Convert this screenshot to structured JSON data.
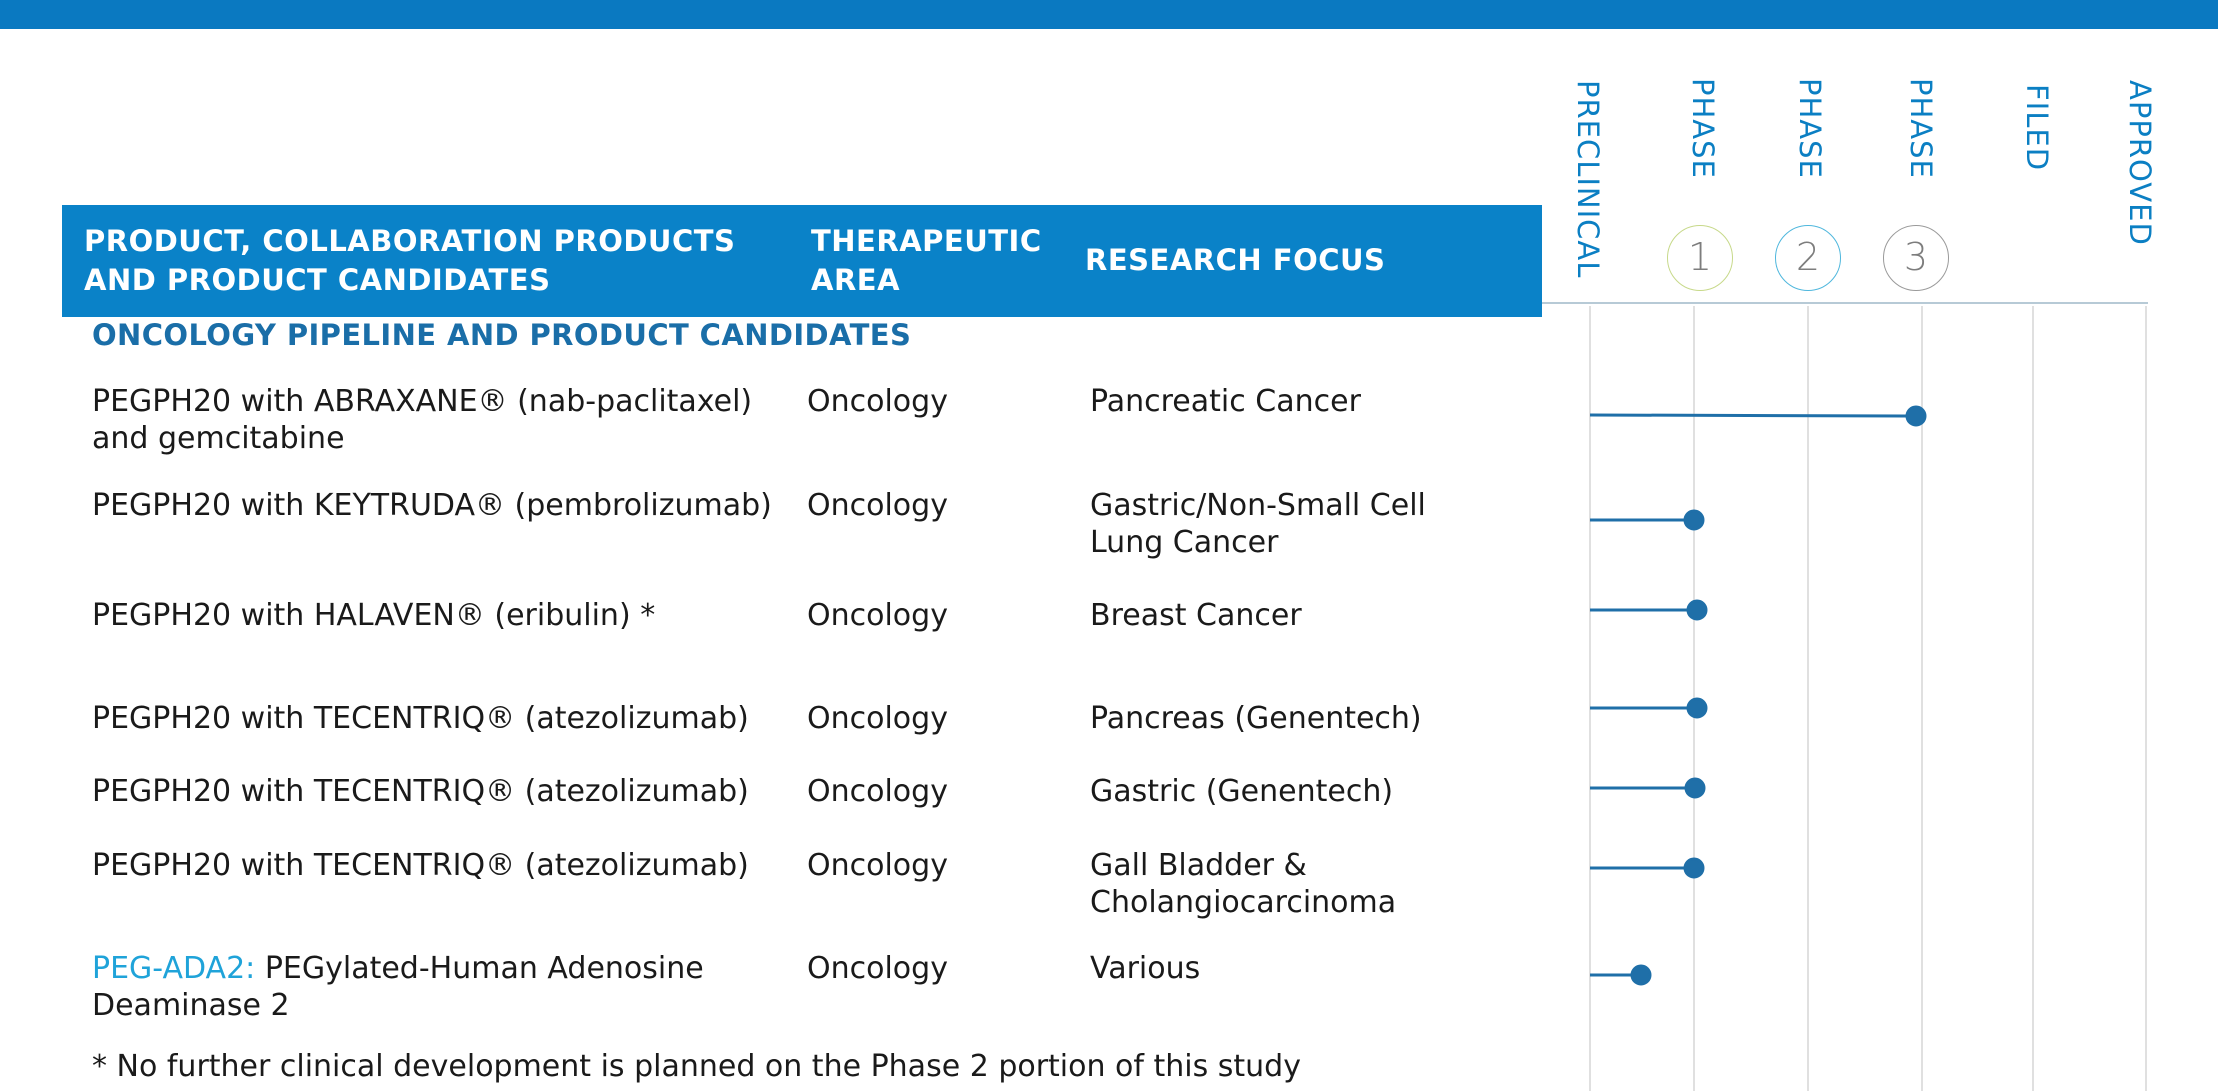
{
  "colors": {
    "brand_blue": "#0a82c8",
    "top_bar": "#0a79c1",
    "marker": "#1f6fa8",
    "accent_link": "#1fa3d9"
  },
  "header": {
    "product_col": [
      "PRODUCT, COLLABORATION PRODUCTS",
      "AND PRODUCT CANDIDATES"
    ],
    "therapeutic_col": [
      "THERAPEUTIC",
      "AREA"
    ],
    "research_col": "RESEARCH FOCUS"
  },
  "stages": {
    "preclinical": "PRECLINICAL",
    "phase1_label": "PHASE",
    "phase2_label": "PHASE",
    "phase3_label": "PHASE",
    "filed": "FILED",
    "approved": "APPROVED",
    "phase1_num": "1",
    "phase2_num": "2",
    "phase3_num": "3"
  },
  "section_title": "ONCOLOGY PIPELINE AND PRODUCT CANDIDATES",
  "rows": [
    {
      "product": [
        "PEGPH20 with ABRAXANE® (nab-paclitaxel)",
        "and gemcitabine"
      ],
      "area": "Oncology",
      "focus": [
        "Pancreatic Cancer"
      ],
      "stage": "Phase 3"
    },
    {
      "product": [
        "PEGPH20 with KEYTRUDA® (pembrolizumab)"
      ],
      "area": "Oncology",
      "focus": [
        "Gastric/Non-Small Cell",
        "Lung Cancer"
      ],
      "stage": "Phase 1"
    },
    {
      "product": [
        "PEGPH20 with HALAVEN® (eribulin) *"
      ],
      "area": "Oncology",
      "focus": [
        "Breast Cancer"
      ],
      "stage": "Phase 1"
    },
    {
      "product": [
        "PEGPH20 with TECENTRIQ® (atezolizumab)"
      ],
      "area": "Oncology",
      "focus": [
        "Pancreas (Genentech)"
      ],
      "stage": "Phase 1"
    },
    {
      "product": [
        "PEGPH20 with TECENTRIQ® (atezolizumab)"
      ],
      "area": "Oncology",
      "focus": [
        "Gastric (Genentech)"
      ],
      "stage": "Phase 1"
    },
    {
      "product": [
        "PEGPH20 with TECENTRIQ® (atezolizumab)"
      ],
      "area": "Oncology",
      "focus": [
        "Gall Bladder &",
        "Cholangiocarcinoma"
      ],
      "stage": "Phase 1"
    },
    {
      "product_accent": "PEG-ADA2:",
      "product_rest": " PEGylated-Human Adenosine",
      "product2": "Deaminase 2",
      "area": "Oncology",
      "focus": [
        "Various"
      ],
      "stage": "Preclinical"
    }
  ],
  "footnote": "* No further clinical development is planned on the Phase 2 portion of this study"
}
